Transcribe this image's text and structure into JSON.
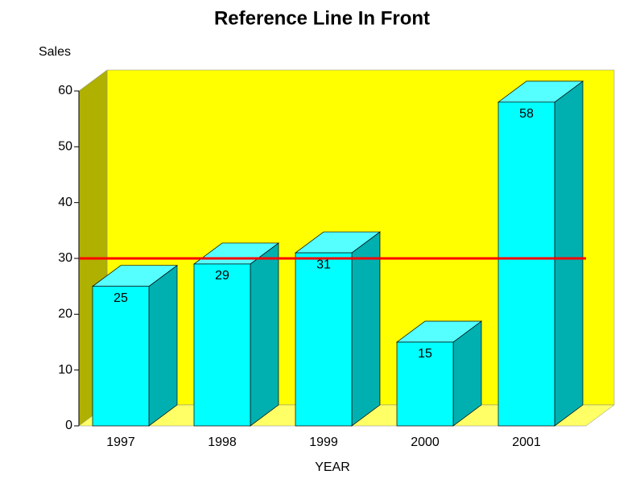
{
  "chart_data": {
    "type": "bar3d",
    "title": "Reference Line In Front",
    "y_label": "Sales",
    "x_label": "YEAR",
    "categories": [
      "1997",
      "1998",
      "1999",
      "2000",
      "2001"
    ],
    "values": [
      25,
      29,
      31,
      15,
      58
    ],
    "color": "#00ffff",
    "ylim": [
      0,
      60
    ],
    "yticks": [
      0,
      10,
      20,
      30,
      40,
      50,
      60
    ],
    "reference_line": 30,
    "reference_color": "#ff0000",
    "wall_color": "#ffff00"
  }
}
